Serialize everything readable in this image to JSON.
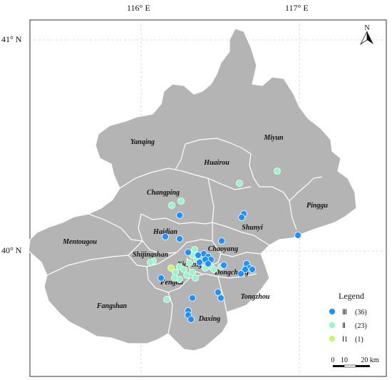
{
  "axes": {
    "lon_labels": [
      "116° E",
      "117° E"
    ],
    "lat_labels": [
      "41° N",
      "40° N"
    ]
  },
  "districts": [
    {
      "name": "Yanqing"
    },
    {
      "name": "Huairou"
    },
    {
      "name": "Miyun"
    },
    {
      "name": "Pinggu"
    },
    {
      "name": "Changping"
    },
    {
      "name": "Shunyi"
    },
    {
      "name": "Haidian"
    },
    {
      "name": "Mentougou"
    },
    {
      "name": "Chaoyang"
    },
    {
      "name": "Shijingshan"
    },
    {
      "name": "Xicheng"
    },
    {
      "name": "Dongcheng"
    },
    {
      "name": "Fengtai"
    },
    {
      "name": "Tongzhou"
    },
    {
      "name": "Fangshan"
    },
    {
      "name": "Daxing"
    }
  ],
  "north_arrow": {
    "label": "N"
  },
  "legend": {
    "title": "Legend",
    "items": [
      {
        "label": "Ⅲ",
        "count": "(36)",
        "color": "#1e90ff"
      },
      {
        "label": "Ⅱ",
        "count": "(23)",
        "color": "#98f5c8"
      },
      {
        "label": "Ⅰ1",
        "count": "(1)",
        "color": "#ccf56a"
      }
    ]
  },
  "scale_bar": {
    "ticks": [
      "0",
      "10",
      "20 km"
    ]
  },
  "colors": {
    "land": "#b4b4b4",
    "boundary": "#ffffff",
    "frame": "#333333",
    "grid": "#cfcfcf"
  }
}
